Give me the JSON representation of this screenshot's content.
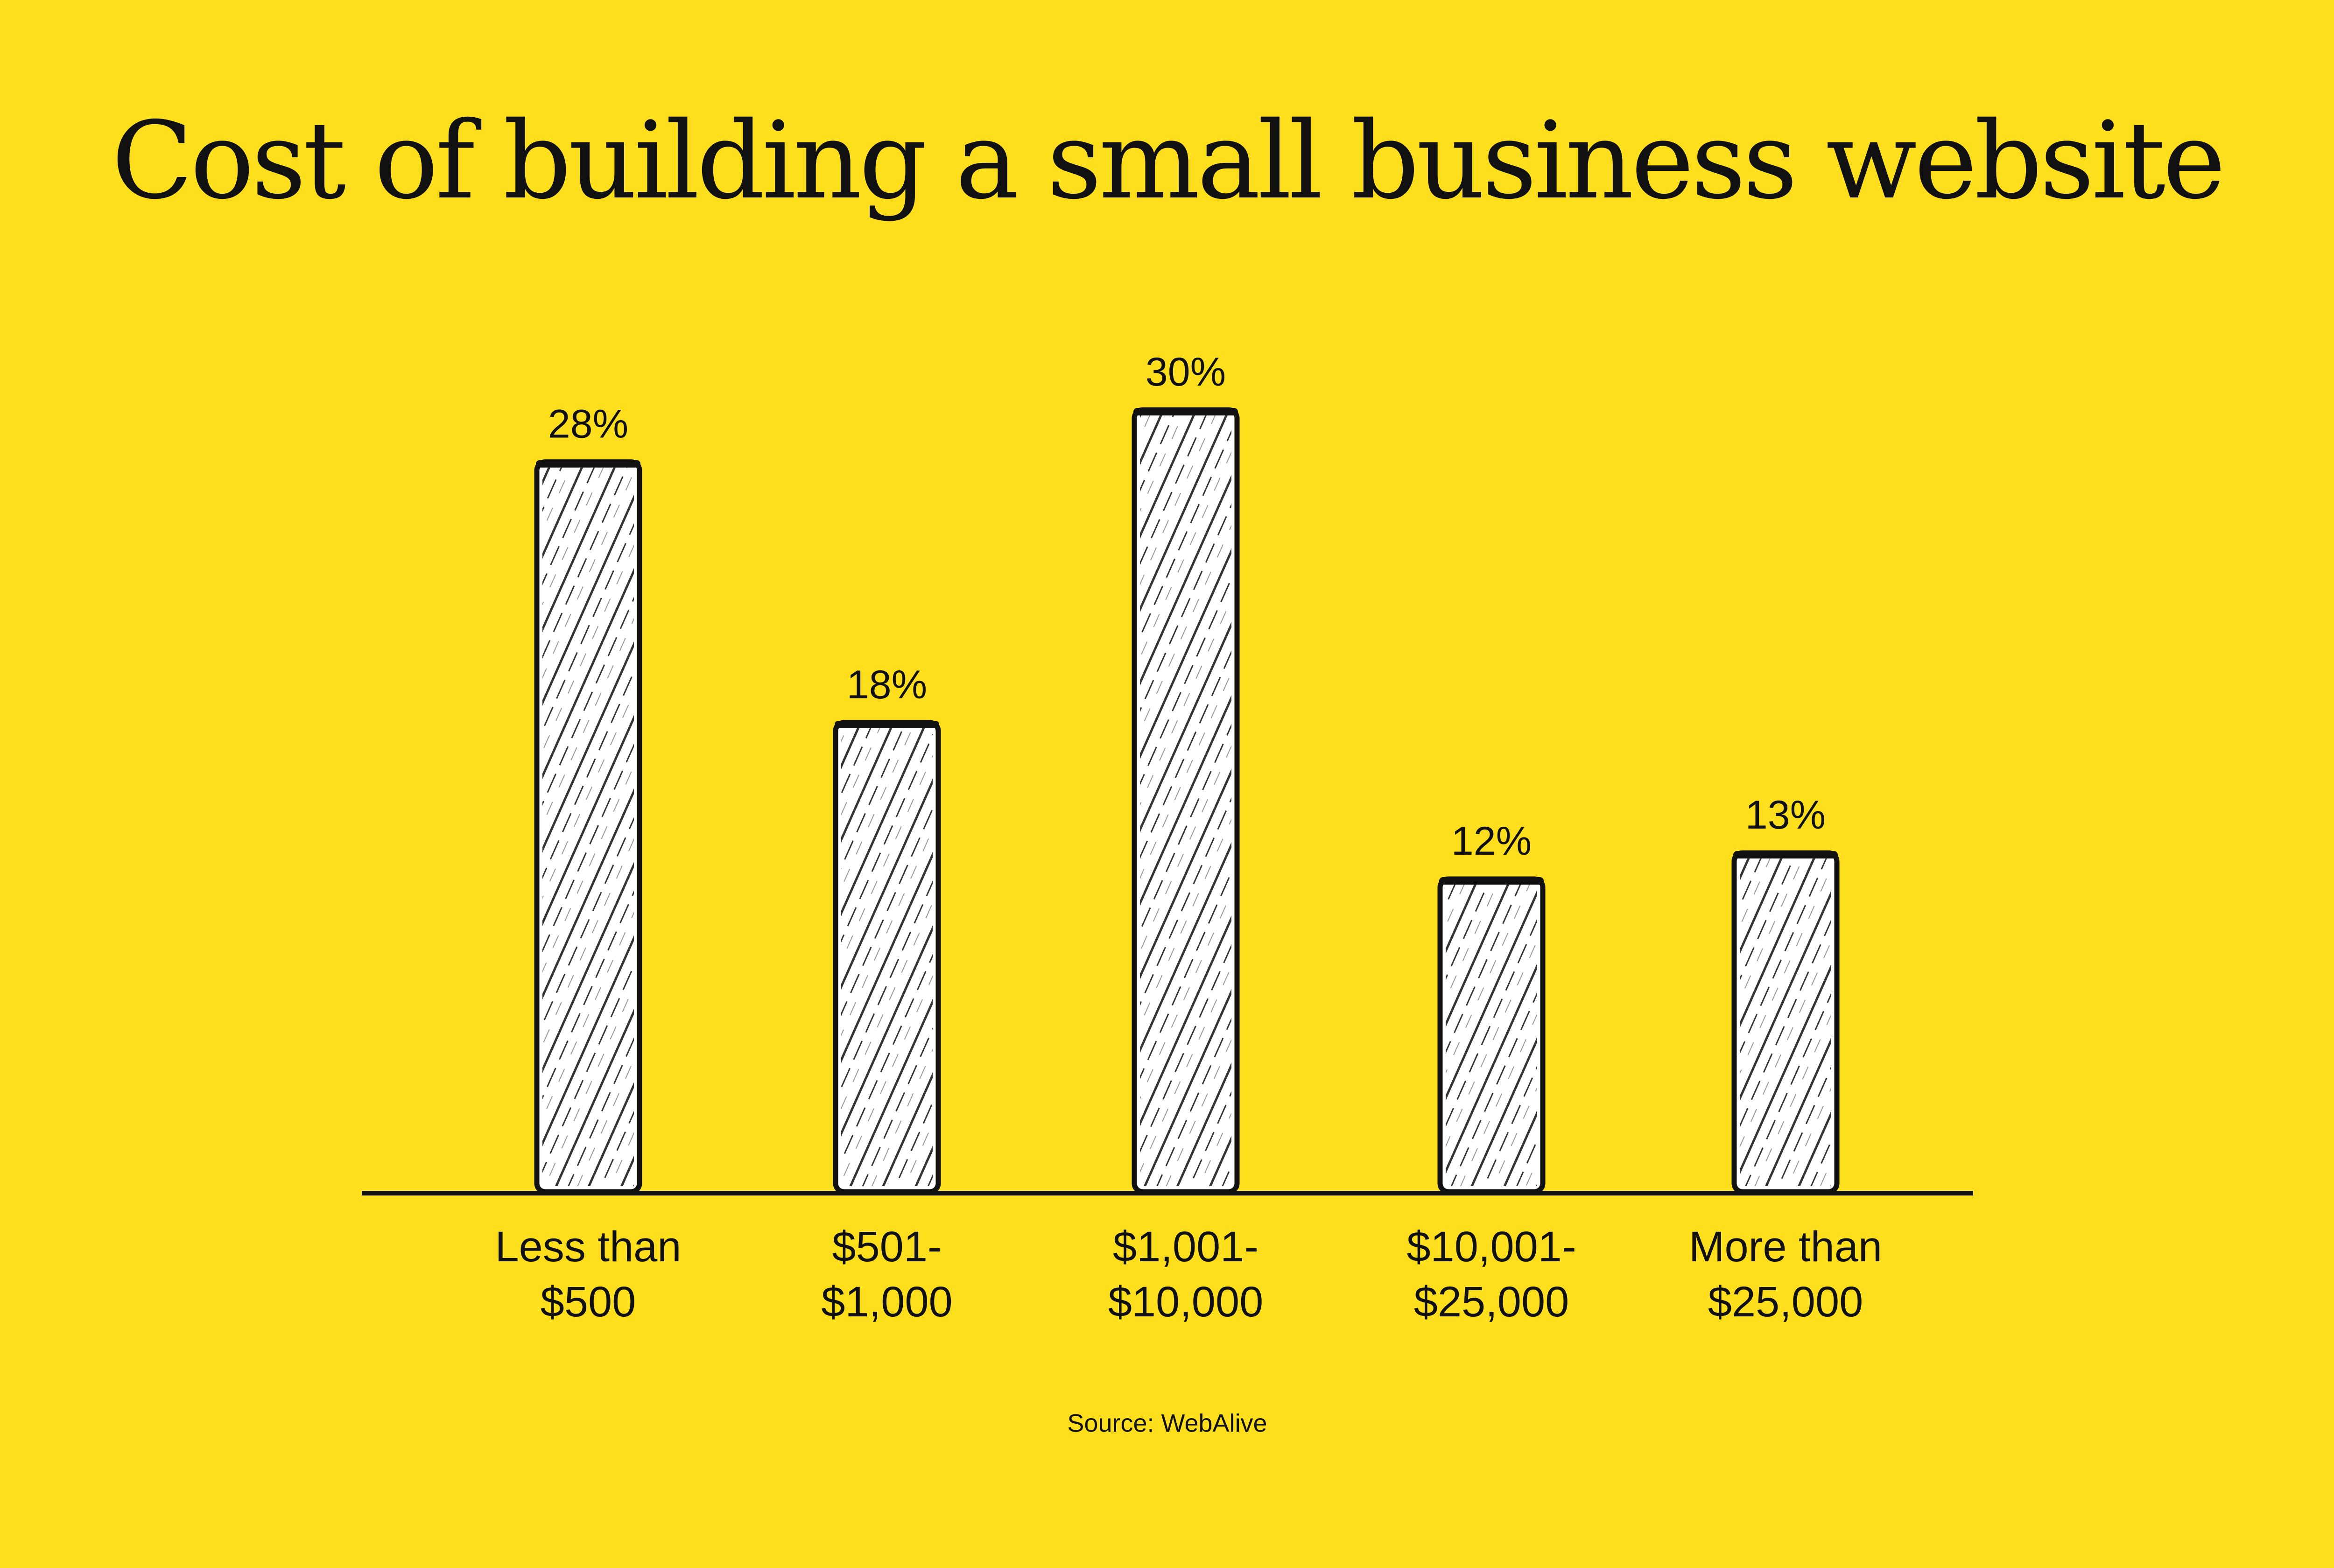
{
  "colors": {
    "background": "#FEDF1E",
    "bar_fill": "#FFFFFF",
    "ink": "#111111"
  },
  "chart_data": {
    "type": "bar",
    "title": "Cost of building a small business website",
    "categories": [
      [
        "Less than",
        "$500"
      ],
      [
        "$501-",
        "$1,000"
      ],
      [
        "$1,001-",
        "$10,000"
      ],
      [
        "$10,001-",
        "$25,000"
      ],
      [
        "More than",
        "$25,000"
      ]
    ],
    "values": [
      28,
      18,
      30,
      12,
      13
    ],
    "value_labels": [
      "28%",
      "18%",
      "30%",
      "12%",
      "13%"
    ],
    "unit": "%",
    "ylim": [
      0,
      30
    ],
    "grid": false,
    "legend": "none",
    "source": "Source: WebAlive"
  }
}
